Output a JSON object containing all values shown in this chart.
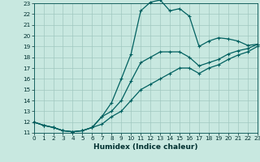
{
  "xlabel": "Humidex (Indice chaleur)",
  "xlim": [
    0,
    23
  ],
  "ylim": [
    11,
    23
  ],
  "xticks": [
    0,
    1,
    2,
    3,
    4,
    5,
    6,
    7,
    8,
    9,
    10,
    11,
    12,
    13,
    14,
    15,
    16,
    17,
    18,
    19,
    20,
    21,
    22,
    23
  ],
  "yticks": [
    11,
    12,
    13,
    14,
    15,
    16,
    17,
    18,
    19,
    20,
    21,
    22,
    23
  ],
  "bg_color": "#c8e8e0",
  "grid_color": "#a0c8c0",
  "line_color": "#006060",
  "hours": [
    0,
    1,
    2,
    3,
    4,
    5,
    6,
    7,
    8,
    9,
    10,
    11,
    12,
    13,
    14,
    15,
    16,
    17,
    18,
    19,
    20,
    21,
    22,
    23
  ],
  "curve_top": [
    12.0,
    11.7,
    11.5,
    11.2,
    11.1,
    11.2,
    11.5,
    12.5,
    13.8,
    16.0,
    18.3,
    22.3,
    23.1,
    23.3,
    22.3,
    22.5,
    21.8,
    19.0,
    19.5,
    19.8,
    19.7,
    19.5,
    19.1,
    19.2
  ],
  "curve_mid": [
    12.0,
    11.7,
    11.5,
    11.2,
    11.1,
    11.2,
    11.5,
    12.5,
    13.0,
    14.0,
    15.8,
    17.5,
    18.0,
    18.5,
    18.5,
    18.5,
    18.0,
    17.2,
    17.5,
    17.8,
    18.3,
    18.6,
    18.8,
    19.2
  ],
  "curve_bot": [
    12.0,
    11.7,
    11.5,
    11.2,
    11.1,
    11.2,
    11.5,
    11.8,
    12.5,
    13.0,
    14.0,
    15.0,
    15.5,
    16.0,
    16.5,
    17.0,
    17.0,
    16.5,
    17.0,
    17.3,
    17.8,
    18.2,
    18.5,
    19.0
  ]
}
